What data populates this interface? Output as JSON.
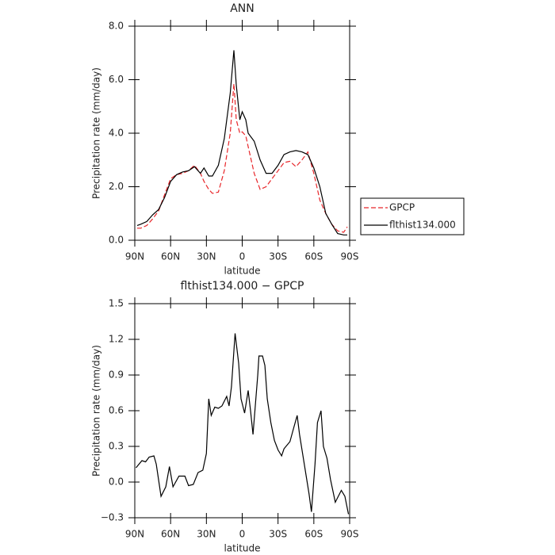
{
  "chart_data": [
    {
      "type": "line",
      "title": "ANN",
      "xlabel": "latitude",
      "ylabel": "Precipitation rate (mm/day)",
      "xlim": [
        90,
        -90
      ],
      "ylim": [
        0,
        8
      ],
      "xticks": [
        {
          "value": 90,
          "label": "90N"
        },
        {
          "value": 60,
          "label": "60N"
        },
        {
          "value": 30,
          "label": "30N"
        },
        0,
        {
          "value": -30,
          "label": "30S"
        },
        {
          "value": -60,
          "label": "60S"
        },
        {
          "value": -90,
          "label": "90S"
        }
      ],
      "yticks": [
        {
          "value": 0,
          "label": "0.0"
        },
        {
          "value": 2,
          "label": "2.0"
        },
        {
          "value": 4,
          "label": "4.0"
        },
        {
          "value": 6,
          "label": "6.0"
        },
        {
          "value": 8,
          "label": "8.0"
        }
      ],
      "legend": "right",
      "x": [
        88,
        85,
        80,
        75,
        70,
        65,
        60,
        55,
        50,
        45,
        40,
        35,
        32,
        28,
        25,
        20,
        15,
        10,
        7,
        5,
        2,
        0,
        -3,
        -5,
        -10,
        -15,
        -20,
        -25,
        -30,
        -35,
        -40,
        -45,
        -50,
        -55,
        -60,
        -65,
        -70,
        -75,
        -80,
        -85,
        -88
      ],
      "series": [
        {
          "name": "GPCP",
          "color": "#e8262a",
          "dash": true,
          "values": [
            0.45,
            0.45,
            0.55,
            0.8,
            1.1,
            1.7,
            2.3,
            2.45,
            2.5,
            2.6,
            2.8,
            2.5,
            2.2,
            1.9,
            1.75,
            1.8,
            2.6,
            4.0,
            5.85,
            4.5,
            4.0,
            4.05,
            3.9,
            3.5,
            2.5,
            1.9,
            2.0,
            2.3,
            2.6,
            2.9,
            2.95,
            2.75,
            3.0,
            3.3,
            2.5,
            1.5,
            1.0,
            0.6,
            0.35,
            0.3,
            0.5
          ]
        },
        {
          "name": "flthist134.000",
          "color": "#000000",
          "dash": false,
          "values": [
            0.55,
            0.6,
            0.7,
            0.95,
            1.15,
            1.6,
            2.2,
            2.45,
            2.55,
            2.6,
            2.75,
            2.5,
            2.7,
            2.4,
            2.4,
            2.8,
            3.8,
            5.5,
            7.1,
            5.8,
            4.5,
            4.8,
            4.5,
            4.0,
            3.7,
            3.0,
            2.5,
            2.5,
            2.8,
            3.2,
            3.3,
            3.35,
            3.3,
            3.2,
            2.7,
            2.0,
            1.0,
            0.6,
            0.25,
            0.2,
            0.2
          ]
        }
      ]
    },
    {
      "type": "line",
      "title": "flthist134.000 − GPCP",
      "xlabel": "latitude",
      "ylabel": "Precipitation rate (mm/day)",
      "xlim": [
        90,
        -90
      ],
      "ylim": [
        -0.3,
        1.5
      ],
      "xticks": [
        {
          "value": 90,
          "label": "90N"
        },
        {
          "value": 60,
          "label": "60N"
        },
        {
          "value": 30,
          "label": "30N"
        },
        0,
        {
          "value": -30,
          "label": "30S"
        },
        {
          "value": -60,
          "label": "60S"
        },
        {
          "value": -90,
          "label": "90S"
        }
      ],
      "yticks": [
        {
          "value": -0.3,
          "label": "−0.3"
        },
        {
          "value": 0,
          "label": "0.0"
        },
        0.3,
        0.6,
        0.9,
        1.2,
        1.5
      ],
      "x": [
        89,
        84,
        81,
        78,
        74,
        72,
        68,
        64,
        61,
        58,
        53,
        48,
        45,
        41,
        37,
        33,
        30,
        28,
        26,
        23,
        20,
        17,
        13,
        11,
        9,
        6,
        3,
        1,
        -2,
        -5,
        -7,
        -9,
        -13,
        -14,
        -17,
        -19,
        -21,
        -24,
        -27,
        -30,
        -33,
        -35,
        -40,
        -43,
        -46,
        -48,
        -52,
        -56,
        -58,
        -61,
        -63,
        -66,
        -68,
        -71,
        -74,
        -78,
        -80,
        -83,
        -86,
        -89
      ],
      "series": [
        {
          "color": "#000000",
          "dash": false,
          "values": [
            0.12,
            0.18,
            0.17,
            0.21,
            0.22,
            0.15,
            -0.12,
            -0.04,
            0.13,
            -0.04,
            0.05,
            0.05,
            -0.03,
            -0.02,
            0.08,
            0.1,
            0.24,
            0.7,
            0.56,
            0.63,
            0.62,
            0.64,
            0.72,
            0.64,
            0.8,
            1.25,
            1.0,
            0.7,
            0.58,
            0.77,
            0.6,
            0.4,
            0.9,
            1.06,
            1.06,
            0.98,
            0.7,
            0.5,
            0.35,
            0.27,
            0.22,
            0.28,
            0.34,
            0.45,
            0.56,
            0.4,
            0.15,
            -0.1,
            -0.25,
            0.15,
            0.5,
            0.6,
            0.3,
            0.2,
            0.02,
            -0.17,
            -0.13,
            -0.07,
            -0.12,
            -0.27
          ]
        }
      ]
    }
  ]
}
